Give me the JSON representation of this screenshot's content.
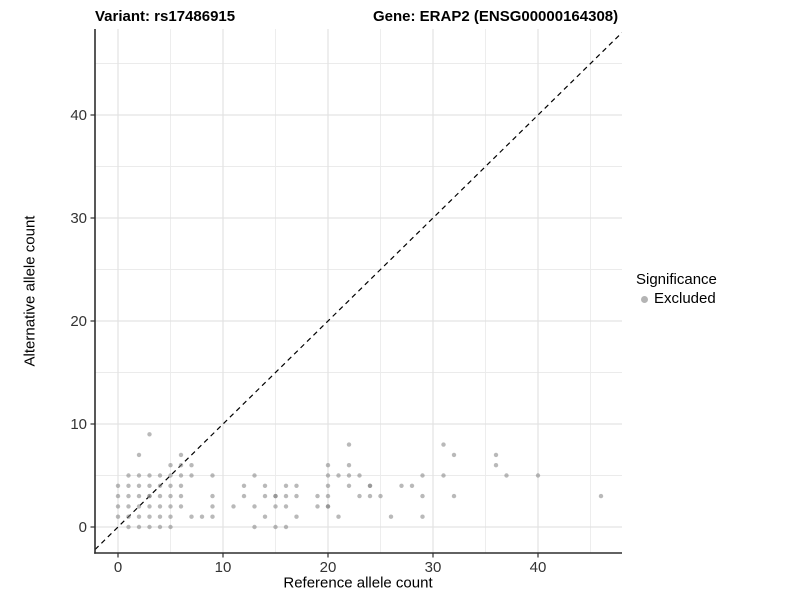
{
  "titles": {
    "left": "Variant: rs17486915",
    "right": "Gene: ERAP2 (ENSG00000164308)"
  },
  "legend": {
    "title": "Significance",
    "items": [
      {
        "label": "Excluded",
        "color": "#b4b4b4"
      }
    ]
  },
  "colors": {
    "background": "#ffffff",
    "point": "#808080",
    "point_opacity": 0.55,
    "grid_major": "#e3e3e3",
    "grid_minor": "#ebebeb",
    "axis_line": "#2e2e2e",
    "tick_label": "#333333",
    "reference_line": "#000000"
  },
  "chart_data": {
    "type": "scatter",
    "title": "Variant: rs17486915 / Gene: ERAP2 (ENSG00000164308)",
    "xlabel": "Reference allele count",
    "ylabel": "Alternative allele count",
    "xlim": [
      -2.2,
      48.0
    ],
    "ylim": [
      -2.5,
      48.4
    ],
    "x_major_ticks": [
      0,
      10,
      20,
      30,
      40
    ],
    "y_major_ticks": [
      0,
      10,
      20,
      30,
      40
    ],
    "x_minor_ticks": [
      5,
      15,
      25,
      35,
      45
    ],
    "y_minor_ticks": [
      5,
      15,
      25,
      35,
      45
    ],
    "grid": true,
    "legend_position": "right",
    "reference_line": {
      "type": "identity",
      "style": "dashed"
    },
    "series": [
      {
        "name": "Excluded",
        "points": [
          [
            1,
            0
          ],
          [
            2,
            0
          ],
          [
            3,
            0
          ],
          [
            4,
            0
          ],
          [
            5,
            0
          ],
          [
            13,
            0
          ],
          [
            15,
            0
          ],
          [
            16,
            0
          ],
          [
            0,
            1
          ],
          [
            1,
            1
          ],
          [
            2,
            1
          ],
          [
            3,
            1
          ],
          [
            4,
            1
          ],
          [
            5,
            1
          ],
          [
            7,
            1
          ],
          [
            8,
            1
          ],
          [
            9,
            1
          ],
          [
            14,
            1
          ],
          [
            17,
            1
          ],
          [
            21,
            1
          ],
          [
            26,
            1
          ],
          [
            29,
            1
          ],
          [
            0,
            2
          ],
          [
            1,
            2
          ],
          [
            2,
            2
          ],
          [
            3,
            2
          ],
          [
            4,
            2
          ],
          [
            5,
            2
          ],
          [
            6,
            2
          ],
          [
            9,
            2
          ],
          [
            11,
            2
          ],
          [
            13,
            2
          ],
          [
            15,
            2
          ],
          [
            16,
            2
          ],
          [
            19,
            2
          ],
          [
            20,
            2
          ],
          [
            0,
            3
          ],
          [
            1,
            3
          ],
          [
            2,
            3
          ],
          [
            3,
            3
          ],
          [
            4,
            3
          ],
          [
            5,
            3
          ],
          [
            6,
            3
          ],
          [
            9,
            3
          ],
          [
            12,
            3
          ],
          [
            14,
            3
          ],
          [
            15,
            3
          ],
          [
            16,
            3
          ],
          [
            17,
            3
          ],
          [
            19,
            3
          ],
          [
            20,
            3
          ],
          [
            23,
            3
          ],
          [
            24,
            3
          ],
          [
            25,
            3
          ],
          [
            29,
            3
          ],
          [
            32,
            3
          ],
          [
            46,
            3
          ],
          [
            0,
            4
          ],
          [
            1,
            4
          ],
          [
            2,
            4
          ],
          [
            3,
            4
          ],
          [
            4,
            4
          ],
          [
            5,
            4
          ],
          [
            6,
            4
          ],
          [
            12,
            4
          ],
          [
            14,
            4
          ],
          [
            16,
            4
          ],
          [
            17,
            4
          ],
          [
            20,
            4
          ],
          [
            22,
            4
          ],
          [
            24,
            4
          ],
          [
            27,
            4
          ],
          [
            28,
            4
          ],
          [
            1,
            5
          ],
          [
            2,
            5
          ],
          [
            3,
            5
          ],
          [
            4,
            5
          ],
          [
            5,
            5
          ],
          [
            6,
            5
          ],
          [
            7,
            5
          ],
          [
            9,
            5
          ],
          [
            13,
            5
          ],
          [
            20,
            5
          ],
          [
            21,
            5
          ],
          [
            22,
            5
          ],
          [
            23,
            5
          ],
          [
            29,
            5
          ],
          [
            31,
            5
          ],
          [
            37,
            5
          ],
          [
            40,
            5
          ],
          [
            5,
            6
          ],
          [
            6,
            6
          ],
          [
            7,
            6
          ],
          [
            20,
            6
          ],
          [
            22,
            6
          ],
          [
            36,
            6
          ],
          [
            2,
            7
          ],
          [
            6,
            7
          ],
          [
            32,
            7
          ],
          [
            36,
            7
          ],
          [
            22,
            8
          ],
          [
            31,
            8
          ],
          [
            3,
            9
          ]
        ]
      }
    ],
    "overplotted_points": [
      [
        3,
        3
      ],
      [
        15,
        3
      ],
      [
        24,
        4
      ],
      [
        20,
        2
      ]
    ]
  }
}
